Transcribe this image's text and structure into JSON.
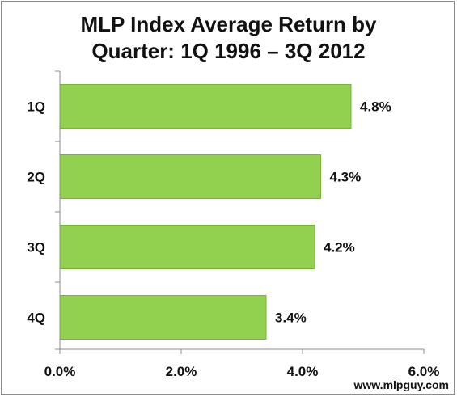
{
  "chart_data": {
    "type": "bar",
    "orientation": "horizontal",
    "title": "MLP Index Average Return by Quarter: 1Q 1996 – 3Q 2012",
    "title_lines": [
      "MLP Index Average Return by",
      "Quarter: 1Q 1996 – 3Q 2012"
    ],
    "categories": [
      "1Q",
      "2Q",
      "3Q",
      "4Q"
    ],
    "values": [
      4.8,
      4.3,
      4.2,
      3.4
    ],
    "data_labels": [
      "4.8%",
      "4.3%",
      "4.2%",
      "3.4%"
    ],
    "xlim": [
      0,
      6
    ],
    "x_ticks": [
      0,
      2,
      4,
      6
    ],
    "x_tick_labels": [
      "0.0%",
      "2.0%",
      "4.0%",
      "6.0%"
    ],
    "xlabel": "",
    "ylabel": "",
    "grid": false,
    "legend": "none",
    "bar_color": "#92d050",
    "bar_edge_color": "#7ab33a"
  },
  "source_note": "www.mlpguy.com"
}
